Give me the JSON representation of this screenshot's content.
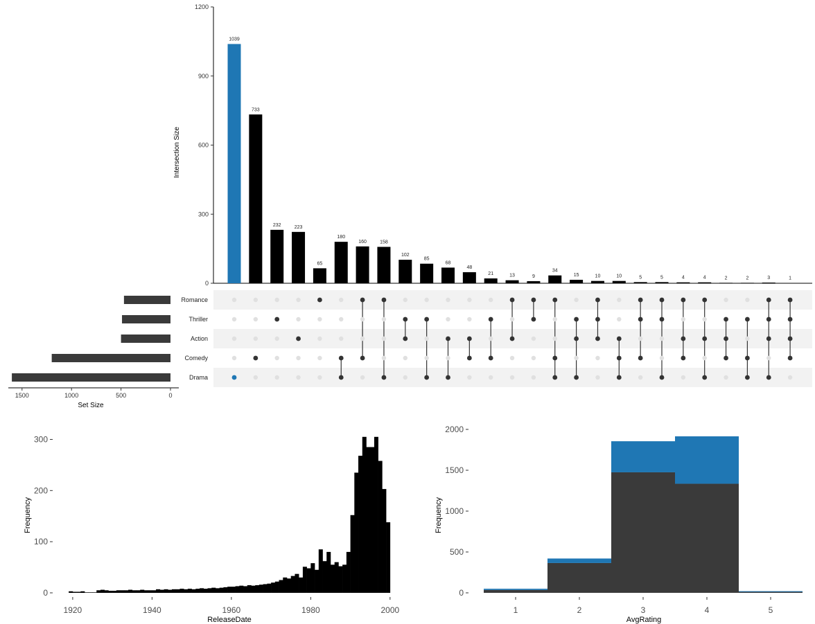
{
  "chart_data": [
    {
      "type": "bar",
      "subtype": "upset",
      "ylabel": "Intersection Size",
      "ylim": [
        0,
        1200
      ],
      "yticks": [
        0,
        300,
        600,
        900,
        1200
      ],
      "highlight_color": "#1f77b4",
      "bar_color": "#000000",
      "sets": [
        "Romance",
        "Thriller",
        "Action",
        "Comedy",
        "Drama"
      ],
      "intersections": [
        {
          "members": [
            "Drama"
          ],
          "value": 1039,
          "highlight": true
        },
        {
          "members": [
            "Comedy"
          ],
          "value": 733
        },
        {
          "members": [
            "Thriller"
          ],
          "value": 232
        },
        {
          "members": [
            "Action"
          ],
          "value": 223
        },
        {
          "members": [
            "Romance"
          ],
          "value": 65
        },
        {
          "members": [
            "Comedy",
            "Drama"
          ],
          "value": 180
        },
        {
          "members": [
            "Romance",
            "Comedy"
          ],
          "value": 160
        },
        {
          "members": [
            "Romance",
            "Drama"
          ],
          "value": 158
        },
        {
          "members": [
            "Thriller",
            "Action"
          ],
          "value": 102
        },
        {
          "members": [
            "Thriller",
            "Drama"
          ],
          "value": 85
        },
        {
          "members": [
            "Action",
            "Drama"
          ],
          "value": 68
        },
        {
          "members": [
            "Action",
            "Comedy"
          ],
          "value": 48
        },
        {
          "members": [
            "Thriller",
            "Comedy"
          ],
          "value": 21
        },
        {
          "members": [
            "Romance",
            "Action"
          ],
          "value": 13
        },
        {
          "members": [
            "Romance",
            "Thriller"
          ],
          "value": 9
        },
        {
          "members": [
            "Romance",
            "Comedy",
            "Drama"
          ],
          "value": 34
        },
        {
          "members": [
            "Thriller",
            "Action",
            "Drama"
          ],
          "value": 15
        },
        {
          "members": [
            "Romance",
            "Thriller",
            "Action"
          ],
          "value": 10
        },
        {
          "members": [
            "Action",
            "Comedy",
            "Drama"
          ],
          "value": 10
        },
        {
          "members": [
            "Romance",
            "Thriller",
            "Comedy"
          ],
          "value": 5
        },
        {
          "members": [
            "Romance",
            "Thriller",
            "Drama"
          ],
          "value": 5
        },
        {
          "members": [
            "Romance",
            "Action",
            "Comedy"
          ],
          "value": 4
        },
        {
          "members": [
            "Romance",
            "Action",
            "Drama"
          ],
          "value": 4
        },
        {
          "members": [
            "Thriller",
            "Action",
            "Comedy"
          ],
          "value": 2
        },
        {
          "members": [
            "Thriller",
            "Comedy",
            "Drama"
          ],
          "value": 2
        },
        {
          "members": [
            "Romance",
            "Thriller",
            "Action",
            "Drama"
          ],
          "value": 3
        },
        {
          "members": [
            "Romance",
            "Thriller",
            "Action",
            "Comedy"
          ],
          "value": 1
        }
      ]
    },
    {
      "type": "bar",
      "subtype": "set-size",
      "xlabel": "Set Size",
      "xticks": [
        1500,
        1000,
        500,
        0
      ],
      "xlim": [
        1650,
        0
      ],
      "bar_color": "#3a3a3a",
      "categories": [
        "Romance",
        "Thriller",
        "Action",
        "Comedy",
        "Drama"
      ],
      "values": [
        470,
        490,
        500,
        1200,
        1603
      ]
    },
    {
      "type": "bar",
      "subtype": "histogram",
      "xlabel": "ReleaseDate",
      "ylabel": "Frequency",
      "xlim": [
        1916,
        2003
      ],
      "ylim": [
        0,
        320
      ],
      "xticks": [
        1920,
        1940,
        1960,
        1980,
        2000
      ],
      "yticks": [
        0,
        100,
        200,
        300
      ],
      "bar_color": "#000000",
      "bin_start": 1919,
      "bin_width": 1,
      "values": [
        3,
        2,
        2,
        3,
        1,
        1,
        1,
        5,
        6,
        5,
        4,
        4,
        5,
        5,
        5,
        6,
        5,
        5,
        6,
        5,
        5,
        5,
        7,
        6,
        7,
        6,
        7,
        7,
        8,
        7,
        8,
        7,
        8,
        9,
        8,
        9,
        10,
        9,
        10,
        11,
        12,
        12,
        13,
        14,
        13,
        15,
        14,
        15,
        16,
        17,
        18,
        20,
        22,
        25,
        30,
        28,
        33,
        37,
        30,
        51,
        48,
        58,
        45,
        85,
        62,
        80,
        55,
        60,
        52,
        55,
        80,
        152,
        235,
        268,
        305,
        285,
        285,
        305,
        258,
        203,
        138
      ]
    },
    {
      "type": "bar",
      "subtype": "stacked-histogram",
      "xlabel": "AvgRating",
      "ylabel": "Frequency",
      "xlim": [
        0.5,
        5.5
      ],
      "ylim": [
        0,
        2050
      ],
      "xticks": [
        1,
        2,
        3,
        4,
        5
      ],
      "yticks": [
        0,
        500,
        1000,
        1500,
        2000
      ],
      "categories": [
        1,
        2,
        3,
        4,
        5
      ],
      "series": [
        {
          "color": "#3a3a3a",
          "values": [
            35,
            365,
            1475,
            1335,
            15
          ]
        },
        {
          "color": "#1f77b4",
          "values": [
            15,
            55,
            380,
            580,
            5
          ]
        }
      ]
    }
  ]
}
